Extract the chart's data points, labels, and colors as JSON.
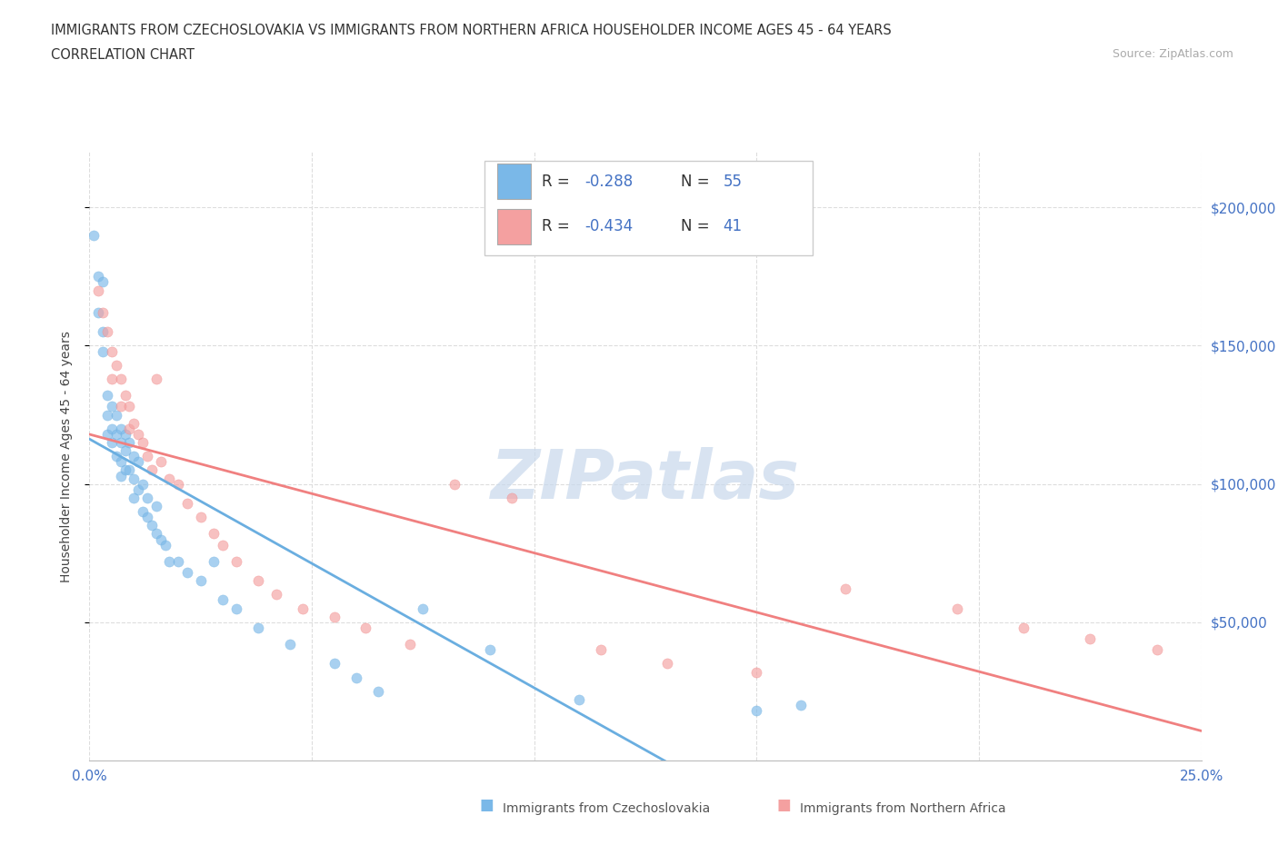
{
  "title_line1": "IMMIGRANTS FROM CZECHOSLOVAKIA VS IMMIGRANTS FROM NORTHERN AFRICA HOUSEHOLDER INCOME AGES 45 - 64 YEARS",
  "title_line2": "CORRELATION CHART",
  "source_text": "Source: ZipAtlas.com",
  "ylabel": "Householder Income Ages 45 - 64 years",
  "xlim": [
    0.0,
    0.25
  ],
  "ylim": [
    0,
    220000
  ],
  "xticks": [
    0.0,
    0.05,
    0.1,
    0.15,
    0.2,
    0.25
  ],
  "ytick_positions": [
    50000,
    100000,
    150000,
    200000
  ],
  "ytick_labels": [
    "$50,000",
    "$100,000",
    "$150,000",
    "$200,000"
  ],
  "watermark_text": "ZIPatlas",
  "legend_r1": "-0.288",
  "legend_n1": "55",
  "legend_r2": "-0.434",
  "legend_n2": "41",
  "color_czech": "#7ab8e8",
  "color_africa": "#f4a0a0",
  "color_czech_line": "#6aaee0",
  "color_africa_line": "#f08080",
  "czech_x": [
    0.001,
    0.002,
    0.002,
    0.003,
    0.003,
    0.003,
    0.004,
    0.004,
    0.004,
    0.005,
    0.005,
    0.005,
    0.006,
    0.006,
    0.006,
    0.007,
    0.007,
    0.007,
    0.007,
    0.008,
    0.008,
    0.008,
    0.009,
    0.009,
    0.01,
    0.01,
    0.01,
    0.011,
    0.011,
    0.012,
    0.012,
    0.013,
    0.013,
    0.014,
    0.015,
    0.015,
    0.016,
    0.017,
    0.018,
    0.02,
    0.022,
    0.025,
    0.028,
    0.03,
    0.033,
    0.038,
    0.045,
    0.055,
    0.06,
    0.065,
    0.075,
    0.09,
    0.11,
    0.15,
    0.16
  ],
  "czech_y": [
    190000,
    175000,
    162000,
    173000,
    155000,
    148000,
    132000,
    125000,
    118000,
    128000,
    120000,
    115000,
    125000,
    118000,
    110000,
    120000,
    115000,
    108000,
    103000,
    118000,
    112000,
    105000,
    115000,
    105000,
    110000,
    102000,
    95000,
    108000,
    98000,
    100000,
    90000,
    95000,
    88000,
    85000,
    92000,
    82000,
    80000,
    78000,
    72000,
    72000,
    68000,
    65000,
    72000,
    58000,
    55000,
    48000,
    42000,
    35000,
    30000,
    25000,
    55000,
    40000,
    22000,
    18000,
    20000
  ],
  "africa_x": [
    0.002,
    0.003,
    0.004,
    0.005,
    0.005,
    0.006,
    0.007,
    0.007,
    0.008,
    0.009,
    0.009,
    0.01,
    0.011,
    0.012,
    0.013,
    0.014,
    0.015,
    0.016,
    0.018,
    0.02,
    0.022,
    0.025,
    0.028,
    0.03,
    0.033,
    0.038,
    0.042,
    0.048,
    0.055,
    0.062,
    0.072,
    0.082,
    0.095,
    0.115,
    0.13,
    0.15,
    0.17,
    0.195,
    0.21,
    0.225,
    0.24
  ],
  "africa_y": [
    170000,
    162000,
    155000,
    148000,
    138000,
    143000,
    138000,
    128000,
    132000,
    128000,
    120000,
    122000,
    118000,
    115000,
    110000,
    105000,
    138000,
    108000,
    102000,
    100000,
    93000,
    88000,
    82000,
    78000,
    72000,
    65000,
    60000,
    55000,
    52000,
    48000,
    42000,
    100000,
    95000,
    40000,
    35000,
    32000,
    62000,
    55000,
    48000,
    44000,
    40000
  ]
}
